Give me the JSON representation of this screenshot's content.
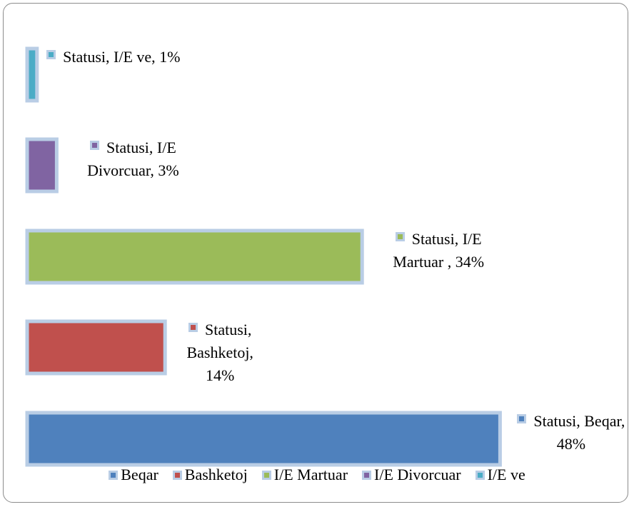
{
  "chart_data": {
    "type": "barh",
    "categories": [
      "Beqar",
      "Bashketoj",
      "I/E Martuar",
      "I/E Divorcuar",
      "I/E ve"
    ],
    "values": [
      48,
      14,
      34,
      3,
      1
    ],
    "value_labels": [
      "Statusi, Beqar, 48%",
      "Statusi, Bashketoj, 14%",
      "Statusi, I/E Martuar , 34%",
      "Statusi, I/E Divorcuar, 3%",
      "Statusi, I/E ve, 1%"
    ],
    "colors": [
      "#4f81bd",
      "#c0504d",
      "#9bbb59",
      "#8064a2",
      "#4bacc6"
    ],
    "xlim": [
      0,
      50
    ],
    "legend": "bottom"
  }
}
